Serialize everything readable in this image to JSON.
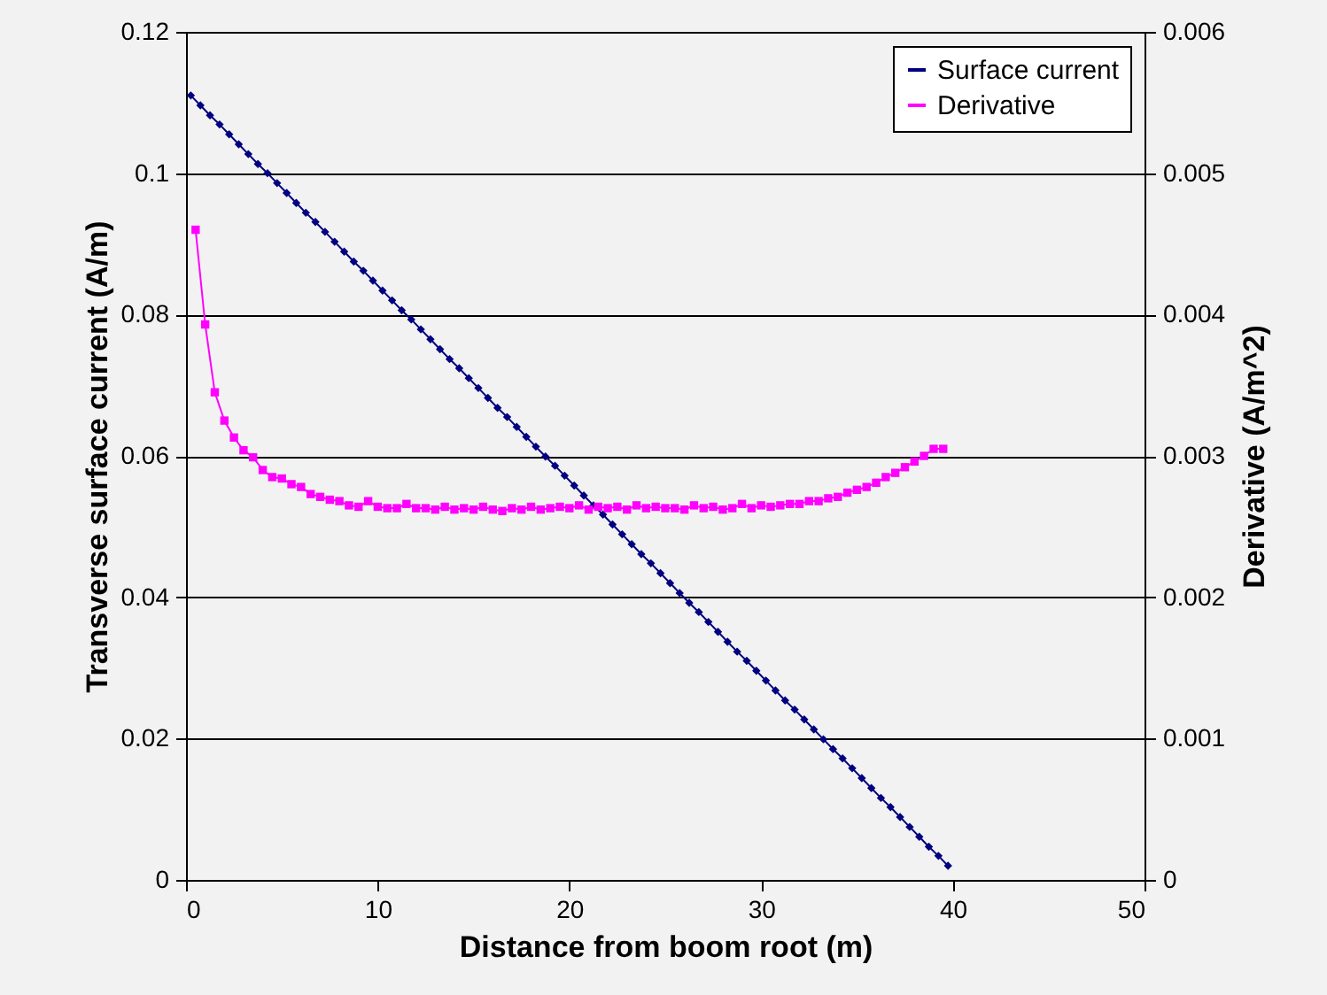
{
  "chart_data": {
    "type": "line",
    "xlabel": "Distance from boom root (m)",
    "ylabel": "Transverse surface current (A/m)",
    "y2label": "Derivative (A/m^2)",
    "xlim": [
      0,
      50
    ],
    "xticks": [
      0,
      10,
      20,
      30,
      40,
      50
    ],
    "ylim": [
      0,
      0.12
    ],
    "yticks": [
      0,
      0.02,
      0.04,
      0.06,
      0.08,
      0.1,
      0.12
    ],
    "y2lim": [
      0,
      0.006
    ],
    "y2ticks": [
      0,
      0.001,
      0.002,
      0.003,
      0.004,
      0.005,
      0.006
    ],
    "grid": "y",
    "legend": "top right",
    "series": [
      {
        "name": "Surface current",
        "color": "#000080",
        "marker": "diamond",
        "x": [
          0.25,
          0.75,
          1.25,
          1.75,
          2.25,
          2.75,
          3.25,
          3.75,
          4.25,
          4.75,
          5.25,
          5.75,
          6.25,
          6.75,
          7.25,
          7.75,
          8.25,
          8.75,
          9.25,
          9.75,
          10.25,
          10.75,
          11.25,
          11.75,
          12.25,
          12.75,
          13.25,
          13.75,
          14.25,
          14.75,
          15.25,
          15.75,
          16.25,
          16.75,
          17.25,
          17.75,
          18.25,
          18.75,
          19.25,
          19.75,
          20.25,
          20.75,
          21.25,
          21.75,
          22.25,
          22.75,
          23.25,
          23.75,
          24.25,
          24.75,
          25.25,
          25.75,
          26.25,
          26.75,
          27.25,
          27.75,
          28.25,
          28.75,
          29.25,
          29.75,
          30.25,
          30.75,
          31.25,
          31.75,
          32.25,
          32.75,
          33.25,
          33.75,
          34.25,
          34.75,
          35.25,
          35.75,
          36.25,
          36.75,
          37.25,
          37.75,
          38.25,
          38.75,
          39.25,
          39.75
        ],
        "values": [
          0.111,
          0.1096,
          0.1082,
          0.1069,
          0.1055,
          0.1041,
          0.1027,
          0.1013,
          0.1,
          0.0986,
          0.0972,
          0.0958,
          0.0944,
          0.0931,
          0.0917,
          0.0903,
          0.0889,
          0.0875,
          0.0862,
          0.0848,
          0.0834,
          0.082,
          0.0806,
          0.0793,
          0.0779,
          0.0765,
          0.0751,
          0.0737,
          0.0724,
          0.071,
          0.0696,
          0.0682,
          0.0668,
          0.0655,
          0.0641,
          0.0627,
          0.0613,
          0.0599,
          0.0586,
          0.0572,
          0.0558,
          0.0544,
          0.053,
          0.0517,
          0.0503,
          0.0489,
          0.0475,
          0.0461,
          0.0448,
          0.0434,
          0.042,
          0.0406,
          0.0392,
          0.0379,
          0.0365,
          0.0351,
          0.0337,
          0.0323,
          0.031,
          0.0296,
          0.0282,
          0.0268,
          0.0254,
          0.0241,
          0.0227,
          0.0213,
          0.0199,
          0.0185,
          0.0172,
          0.0158,
          0.0144,
          0.013,
          0.0116,
          0.0103,
          0.0089,
          0.0075,
          0.0061,
          0.0047,
          0.0034,
          0.002
        ]
      },
      {
        "name": "Derivative",
        "color": "#ff00ff",
        "marker": "square",
        "axis": "y2",
        "x": [
          0.5,
          1,
          1.5,
          2,
          2.5,
          3,
          3.5,
          4,
          4.5,
          5,
          5.5,
          6,
          6.5,
          7,
          7.5,
          8,
          8.5,
          9,
          9.5,
          10,
          10.5,
          11,
          11.5,
          12,
          12.5,
          13,
          13.5,
          14,
          14.5,
          15,
          15.5,
          16,
          16.5,
          17,
          17.5,
          18,
          18.5,
          19,
          19.5,
          20,
          20.5,
          21,
          21.5,
          22,
          22.5,
          23,
          23.5,
          24,
          24.5,
          25,
          25.5,
          26,
          26.5,
          27,
          27.5,
          28,
          28.5,
          29,
          29.5,
          30,
          30.5,
          31,
          31.5,
          32,
          32.5,
          33,
          33.5,
          34,
          34.5,
          35,
          35.5,
          36,
          36.5,
          37,
          37.5,
          38,
          38.5,
          39,
          39.5
        ],
        "values": [
          0.0046,
          0.00393,
          0.00345,
          0.00325,
          0.00313,
          0.00304,
          0.00299,
          0.0029,
          0.00285,
          0.00284,
          0.0028,
          0.00278,
          0.00273,
          0.00271,
          0.00269,
          0.00268,
          0.00265,
          0.00264,
          0.00268,
          0.00264,
          0.00263,
          0.00263,
          0.00266,
          0.00263,
          0.00263,
          0.00262,
          0.00264,
          0.00262,
          0.00263,
          0.00262,
          0.00264,
          0.00262,
          0.00261,
          0.00263,
          0.00262,
          0.00264,
          0.00262,
          0.00263,
          0.00264,
          0.00263,
          0.00265,
          0.00262,
          0.00264,
          0.00263,
          0.00264,
          0.00262,
          0.00265,
          0.00263,
          0.00264,
          0.00263,
          0.00263,
          0.00262,
          0.00265,
          0.00263,
          0.00264,
          0.00262,
          0.00263,
          0.00266,
          0.00263,
          0.00265,
          0.00264,
          0.00265,
          0.00266,
          0.00266,
          0.00268,
          0.00268,
          0.0027,
          0.00271,
          0.00274,
          0.00276,
          0.00278,
          0.00281,
          0.00285,
          0.00288,
          0.00292,
          0.00296,
          0.003,
          0.00305,
          0.00305
        ]
      }
    ]
  }
}
